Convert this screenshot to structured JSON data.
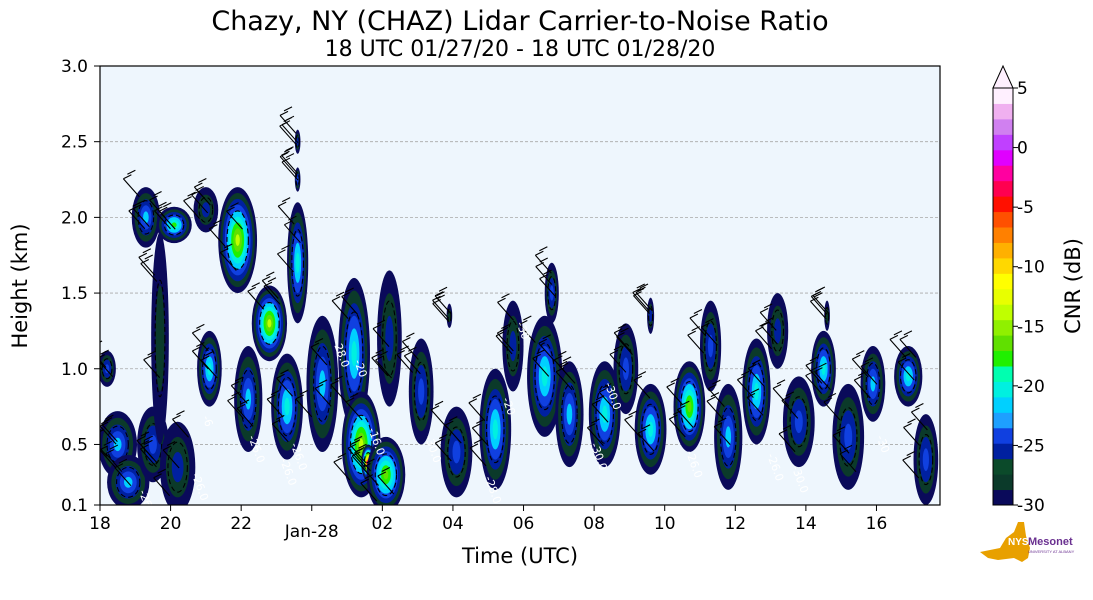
{
  "chart_data": {
    "type": "heatmap",
    "title": "Chazy, NY (CHAZ) Lidar Carrier-to-Noise Ratio",
    "subtitle": "18 UTC 01/27/20 - 18 UTC 01/28/20",
    "xlabel": "Time (UTC)",
    "ylabel": "Height (km)",
    "colorbar_label": "CNR (dB)",
    "x_ticks": [
      "18",
      "20",
      "22",
      "Jan-28",
      "02",
      "04",
      "06",
      "08",
      "10",
      "12",
      "14",
      "16"
    ],
    "x_tick_hours": [
      0,
      2,
      4,
      6,
      8,
      10,
      12,
      14,
      16,
      18,
      20,
      22
    ],
    "x_range_hours": [
      0,
      23.8
    ],
    "y_ticks": [
      "0.1",
      "0.5",
      "1.0",
      "1.5",
      "2.0",
      "2.5",
      "3.0"
    ],
    "y_tick_values": [
      0.1,
      0.5,
      1.0,
      1.5,
      2.0,
      2.5,
      3.0
    ],
    "ylim": [
      0.1,
      3.0
    ],
    "grid": "horizontal dashed",
    "colorbar_ticks": [
      "5",
      "0",
      "-5",
      "-10",
      "-15",
      "-20",
      "-25",
      "-30"
    ],
    "colorbar_tick_values": [
      5,
      0,
      -5,
      -10,
      -15,
      -20,
      -25,
      -30
    ],
    "colorbar_range": [
      -30,
      5
    ],
    "colorbar_extend": "max",
    "contour_labels": [
      {
        "text": "-26.0",
        "hour": 1.1,
        "km": 0.19
      },
      {
        "text": "-26.0",
        "hour": 2.6,
        "km": 0.3
      },
      {
        "text": "-6",
        "hour": 2.9,
        "km": 0.68
      },
      {
        "text": "-26.0",
        "hour": 4.2,
        "km": 0.55
      },
      {
        "text": "-26.0",
        "hour": 5.4,
        "km": 0.5
      },
      {
        "text": "-26.0",
        "hour": 5.1,
        "km": 0.4
      },
      {
        "text": "-28.0",
        "hour": 6.6,
        "km": 1.18
      },
      {
        "text": "-16.0",
        "hour": 7.6,
        "km": 0.6
      },
      {
        "text": "-20",
        "hour": 7.2,
        "km": 1.05
      },
      {
        "text": "-30.0",
        "hour": 9.2,
        "km": 0.55
      },
      {
        "text": "-28.0",
        "hour": 10.9,
        "km": 0.28
      },
      {
        "text": "-20",
        "hour": 11.4,
        "km": 0.8
      },
      {
        "text": "-30",
        "hour": 11.8,
        "km": 1.3
      },
      {
        "text": "-30.0",
        "hour": 13.9,
        "km": 0.5
      },
      {
        "text": "-30.0",
        "hour": 14.3,
        "km": 0.9
      },
      {
        "text": "-26.0",
        "hour": 16.6,
        "km": 0.45
      },
      {
        "text": "-26.0",
        "hour": 18.9,
        "km": 0.43
      },
      {
        "text": "-30.0",
        "hour": 19.6,
        "km": 0.35
      },
      {
        "text": "-30",
        "hour": 22.0,
        "km": 0.55
      },
      {
        "text": "-26",
        "hour": 23.5,
        "km": 0.13
      }
    ],
    "blobs": [
      {
        "hour": 0.5,
        "km": 0.5,
        "rh": 0.55,
        "rk": 0.22,
        "peak": -22
      },
      {
        "hour": 0.8,
        "km": 0.25,
        "rh": 0.6,
        "rk": 0.18,
        "peak": -22
      },
      {
        "hour": 1.5,
        "km": 0.5,
        "rh": 0.45,
        "rk": 0.25,
        "peak": -24
      },
      {
        "hour": 2.2,
        "km": 0.35,
        "rh": 0.5,
        "rk": 0.3,
        "peak": -27
      },
      {
        "hour": 0.2,
        "km": 1.0,
        "rh": 0.25,
        "rk": 0.12,
        "peak": -24
      },
      {
        "hour": 1.3,
        "km": 2.0,
        "rh": 0.4,
        "rk": 0.2,
        "peak": -22
      },
      {
        "hour": 2.1,
        "km": 1.95,
        "rh": 0.5,
        "rk": 0.12,
        "peak": -18
      },
      {
        "hour": 1.7,
        "km": 1.2,
        "rh": 0.25,
        "rk": 0.7,
        "peak": -29
      },
      {
        "hour": 3.0,
        "km": 2.05,
        "rh": 0.35,
        "rk": 0.15,
        "peak": -26
      },
      {
        "hour": 3.9,
        "km": 1.85,
        "rh": 0.55,
        "rk": 0.35,
        "peak": -15
      },
      {
        "hour": 3.1,
        "km": 1.0,
        "rh": 0.35,
        "rk": 0.25,
        "peak": -20
      },
      {
        "hour": 4.2,
        "km": 0.8,
        "rh": 0.4,
        "rk": 0.35,
        "peak": -22
      },
      {
        "hour": 4.8,
        "km": 1.3,
        "rh": 0.5,
        "rk": 0.25,
        "peak": -14
      },
      {
        "hour": 5.3,
        "km": 0.75,
        "rh": 0.45,
        "rk": 0.35,
        "peak": -21
      },
      {
        "hour": 5.6,
        "km": 1.7,
        "rh": 0.3,
        "rk": 0.4,
        "peak": -20
      },
      {
        "hour": 5.6,
        "km": 2.5,
        "rh": 0.08,
        "rk": 0.08,
        "peak": -27
      },
      {
        "hour": 5.6,
        "km": 2.25,
        "rh": 0.08,
        "rk": 0.08,
        "peak": -25
      },
      {
        "hour": 6.3,
        "km": 0.9,
        "rh": 0.45,
        "rk": 0.45,
        "peak": -22
      },
      {
        "hour": 7.2,
        "km": 1.1,
        "rh": 0.45,
        "rk": 0.5,
        "peak": -21
      },
      {
        "hour": 7.4,
        "km": 0.5,
        "rh": 0.55,
        "rk": 0.35,
        "peak": -14
      },
      {
        "hour": 7.6,
        "km": 0.38,
        "rh": 0.2,
        "rk": 0.12,
        "peak": -4
      },
      {
        "hour": 8.1,
        "km": 0.3,
        "rh": 0.55,
        "rk": 0.25,
        "peak": -17
      },
      {
        "hour": 8.2,
        "km": 1.2,
        "rh": 0.35,
        "rk": 0.45,
        "peak": -27
      },
      {
        "hour": 9.1,
        "km": 0.85,
        "rh": 0.35,
        "rk": 0.35,
        "peak": -24
      },
      {
        "hour": 10.1,
        "km": 0.45,
        "rh": 0.45,
        "rk": 0.3,
        "peak": -24
      },
      {
        "hour": 11.2,
        "km": 0.6,
        "rh": 0.45,
        "rk": 0.4,
        "peak": -20
      },
      {
        "hour": 11.7,
        "km": 1.15,
        "rh": 0.3,
        "rk": 0.3,
        "peak": -26
      },
      {
        "hour": 12.6,
        "km": 0.95,
        "rh": 0.5,
        "rk": 0.4,
        "peak": -20
      },
      {
        "hour": 12.8,
        "km": 1.5,
        "rh": 0.2,
        "rk": 0.2,
        "peak": -24
      },
      {
        "hour": 13.3,
        "km": 0.7,
        "rh": 0.4,
        "rk": 0.35,
        "peak": -23
      },
      {
        "hour": 14.3,
        "km": 0.7,
        "rh": 0.45,
        "rk": 0.35,
        "peak": -20
      },
      {
        "hour": 14.9,
        "km": 1.0,
        "rh": 0.35,
        "rk": 0.3,
        "peak": -25
      },
      {
        "hour": 15.6,
        "km": 0.6,
        "rh": 0.45,
        "rk": 0.3,
        "peak": -21
      },
      {
        "hour": 16.7,
        "km": 0.75,
        "rh": 0.45,
        "rk": 0.3,
        "peak": -17
      },
      {
        "hour": 17.3,
        "km": 1.15,
        "rh": 0.3,
        "rk": 0.3,
        "peak": -24
      },
      {
        "hour": 17.8,
        "km": 0.55,
        "rh": 0.4,
        "rk": 0.35,
        "peak": -22
      },
      {
        "hour": 18.6,
        "km": 0.85,
        "rh": 0.4,
        "rk": 0.35,
        "peak": -21
      },
      {
        "hour": 19.2,
        "km": 1.25,
        "rh": 0.3,
        "rk": 0.25,
        "peak": -26
      },
      {
        "hour": 19.8,
        "km": 0.65,
        "rh": 0.45,
        "rk": 0.3,
        "peak": -24
      },
      {
        "hour": 20.5,
        "km": 1.0,
        "rh": 0.35,
        "rk": 0.25,
        "peak": -20
      },
      {
        "hour": 21.2,
        "km": 0.55,
        "rh": 0.45,
        "rk": 0.35,
        "peak": -25
      },
      {
        "hour": 21.9,
        "km": 0.9,
        "rh": 0.35,
        "rk": 0.25,
        "peak": -22
      },
      {
        "hour": 22.9,
        "km": 0.95,
        "rh": 0.4,
        "rk": 0.2,
        "peak": -20
      },
      {
        "hour": 23.4,
        "km": 0.4,
        "rh": 0.35,
        "rk": 0.3,
        "peak": -25
      },
      {
        "hour": 9.9,
        "km": 1.35,
        "rh": 0.08,
        "rk": 0.08,
        "peak": -28
      },
      {
        "hour": 15.6,
        "km": 1.35,
        "rh": 0.1,
        "rk": 0.12,
        "peak": -26
      },
      {
        "hour": 20.6,
        "km": 1.35,
        "rh": 0.08,
        "rk": 0.1,
        "peak": -28
      }
    ]
  },
  "logo": {
    "text": "NYS",
    "brand": "Mesonet",
    "tagline": "UNIVERSITY AT ALBANY"
  },
  "colors": {
    "plot_background": "#eef6fd",
    "colormap": [
      "#0a0a5a",
      "#0b3a2a",
      "#0b4a2a",
      "#0020a0",
      "#1040e0",
      "#1ea0ff",
      "#00d0ff",
      "#00f0e0",
      "#00ffb0",
      "#20f000",
      "#60e000",
      "#90f000",
      "#c0ff00",
      "#e8ff00",
      "#ffff00",
      "#ffd800",
      "#ffb000",
      "#ff8000",
      "#ff5000",
      "#ff1000",
      "#ff0050",
      "#ff00a0",
      "#e000ff",
      "#c040ff",
      "#d080f0",
      "#f0b0f0",
      "#fff0ff"
    ],
    "logo_state": "#e8a000",
    "logo_text": "#6a3090"
  }
}
